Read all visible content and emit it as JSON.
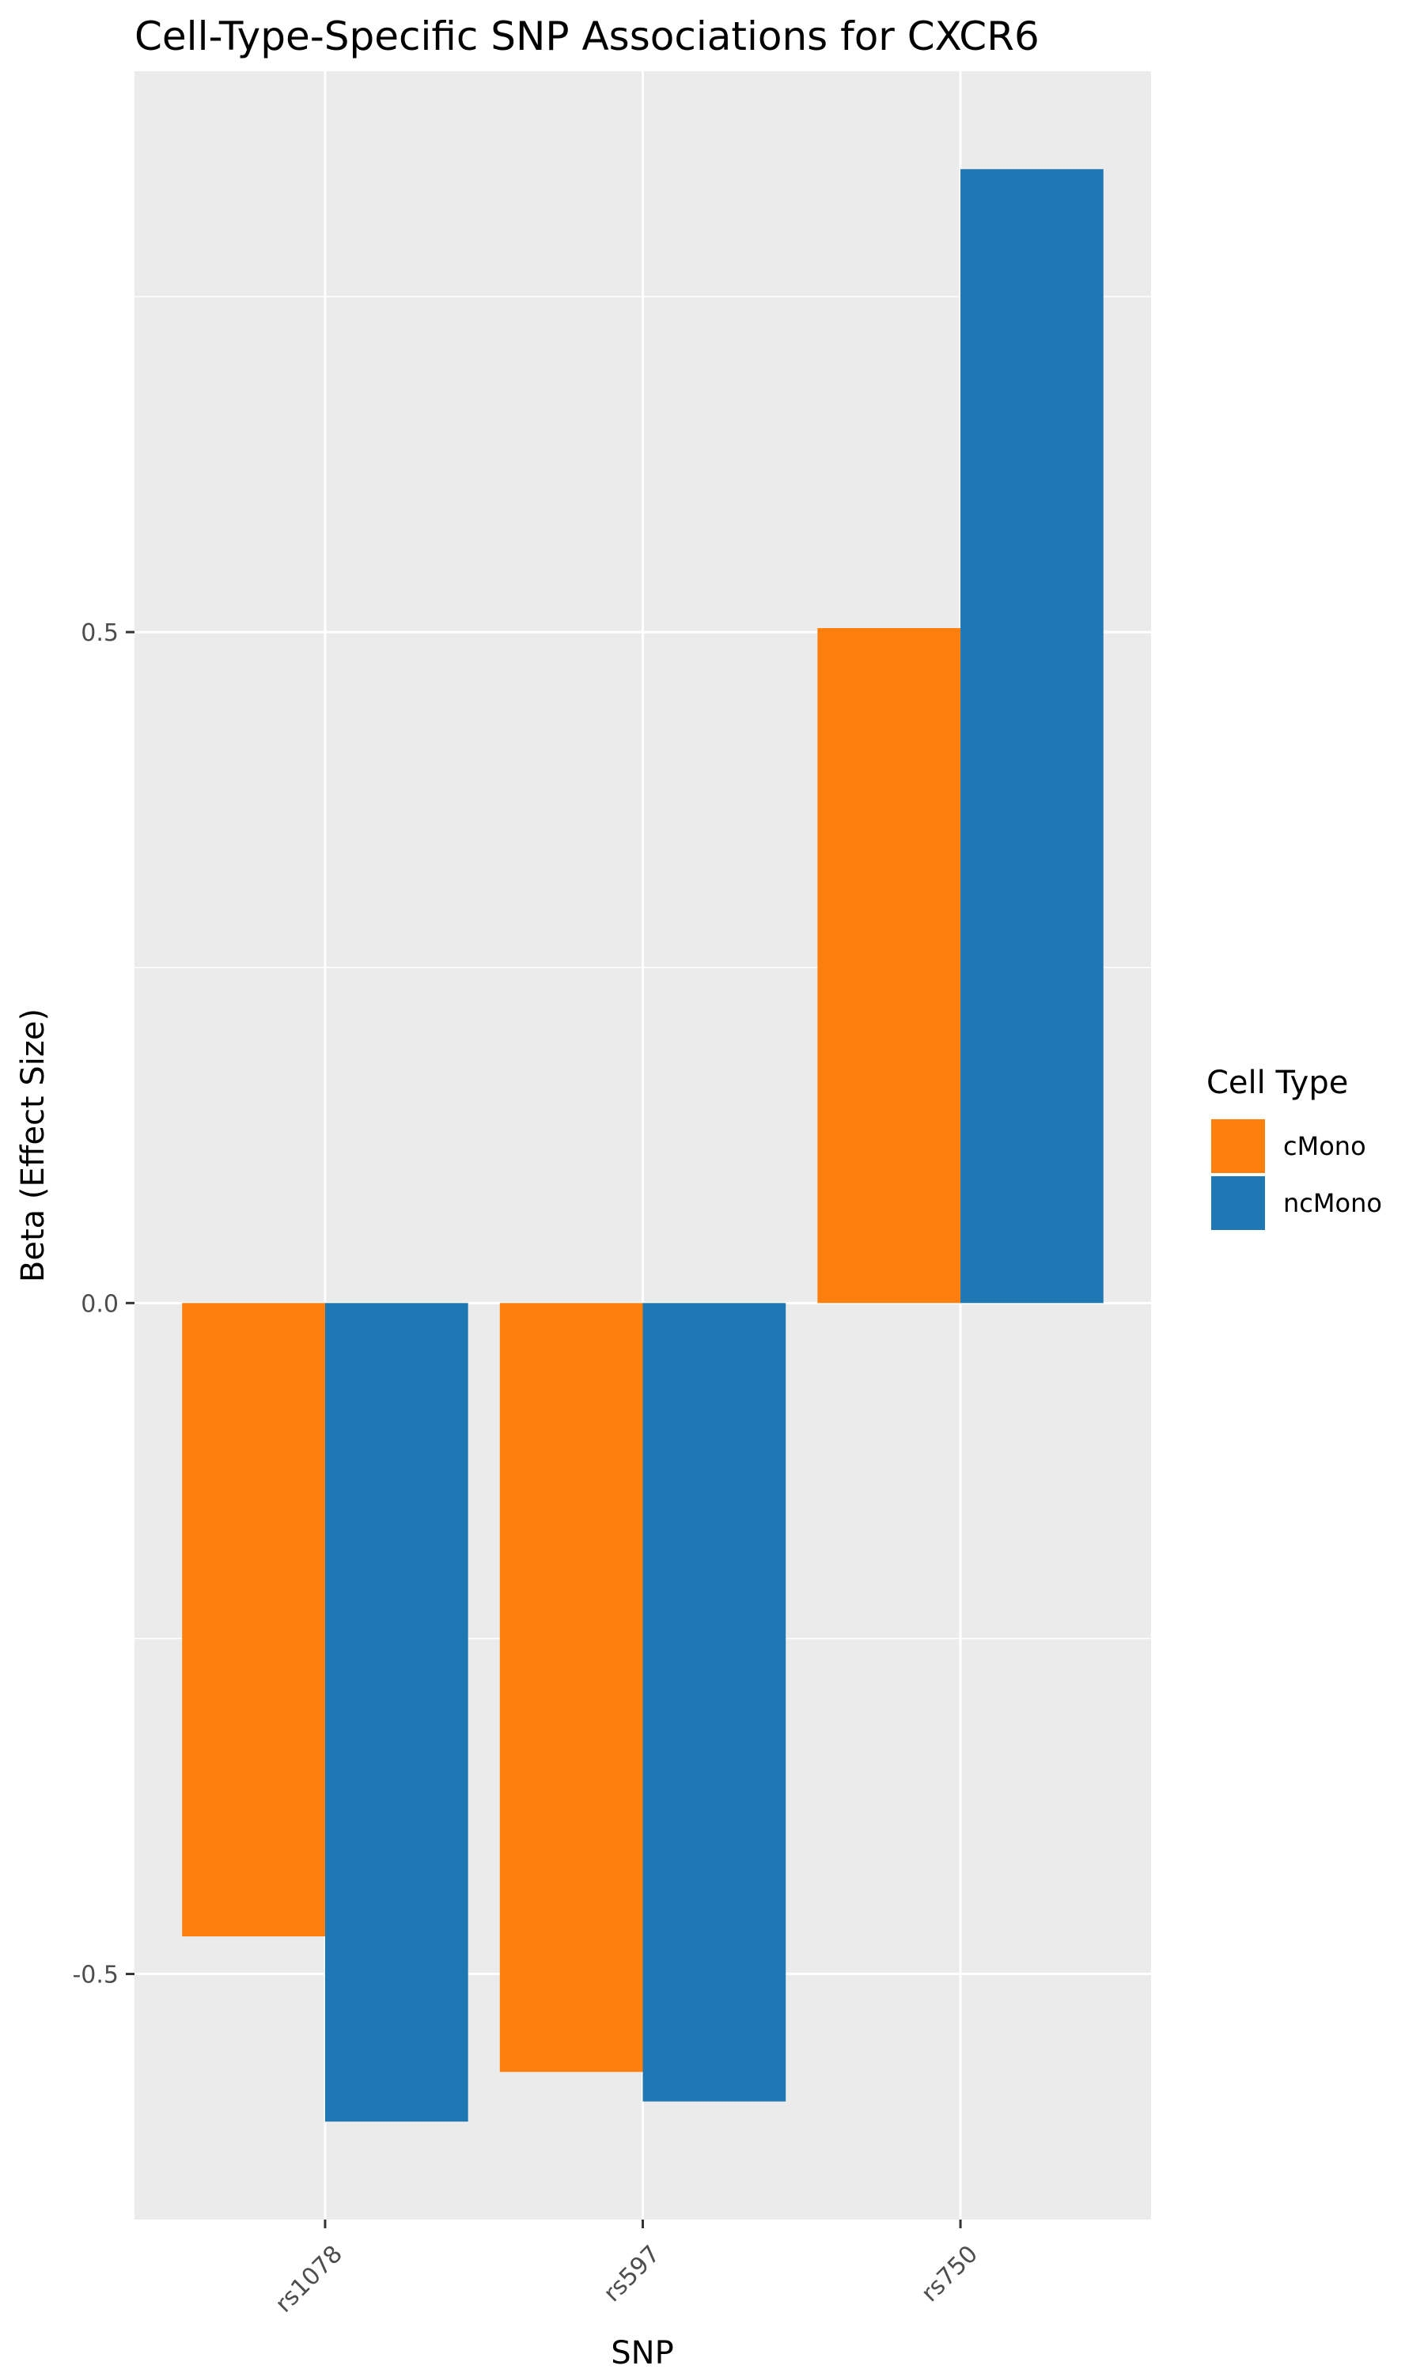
{
  "chart_data": {
    "type": "bar",
    "title": "Cell-Type-Specific SNP Associations for  CXCR6",
    "xlabel": "SNP",
    "ylabel": "Beta (Effect Size)",
    "categories": [
      "rs1078",
      "rs597",
      "rs750"
    ],
    "series": [
      {
        "name": "cMono",
        "values": [
          -0.472,
          -0.573,
          0.503
        ],
        "color": "#FF7F0E"
      },
      {
        "name": "ncMono",
        "values": [
          -0.61,
          -0.595,
          0.845
        ],
        "color": "#1F77B4"
      }
    ],
    "ylim": [
      -0.683,
      0.918
    ],
    "yticks": [
      -0.5,
      0.0,
      0.5
    ],
    "ytick_labels": [
      "-0.5",
      "0.0",
      "0.5"
    ],
    "grid": true,
    "legend": {
      "title": "Cell Type",
      "placement": "right"
    },
    "panel_background": "#EBEBEB",
    "grid_color": "#FFFFFF"
  }
}
